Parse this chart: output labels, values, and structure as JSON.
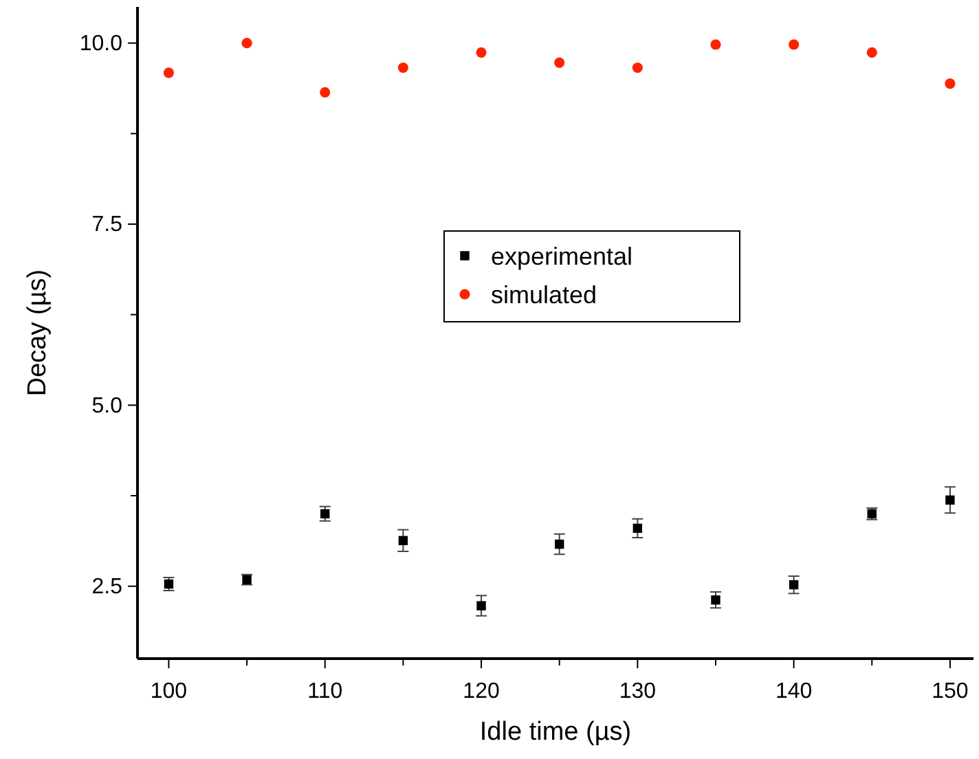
{
  "chart_data": {
    "type": "scatter",
    "xlabel": "Idle time (µs)",
    "ylabel": "Decay (µs)",
    "x": [
      100,
      105,
      110,
      115,
      120,
      125,
      130,
      135,
      140,
      145,
      150
    ],
    "series": [
      {
        "name": "experimental",
        "color": "#000000",
        "marker": "square",
        "values": [
          2.53,
          2.59,
          3.5,
          3.13,
          2.23,
          3.08,
          3.3,
          2.31,
          2.52,
          3.5,
          3.69
        ],
        "errors": [
          0.09,
          0.07,
          0.1,
          0.15,
          0.14,
          0.14,
          0.13,
          0.11,
          0.12,
          0.08,
          0.18
        ]
      },
      {
        "name": "simulated",
        "color": "#ff2200",
        "marker": "circle",
        "values": [
          9.59,
          10.0,
          9.32,
          9.66,
          9.87,
          9.73,
          9.66,
          9.98,
          9.98,
          9.87,
          9.44
        ]
      }
    ],
    "xlim": [
      98,
      151.5
    ],
    "ylim": [
      1.5,
      10.5
    ],
    "xticks": [
      100,
      {
        "value": 105,
        "label": null
      },
      110,
      {
        "value": 115,
        "label": null
      },
      120,
      {
        "value": 125,
        "label": null
      },
      130,
      {
        "value": 135,
        "label": null
      },
      140,
      {
        "value": 145,
        "label": null
      },
      150
    ],
    "yticks": [
      2.5,
      {
        "value": 3.75,
        "label": null
      },
      {
        "value": 5,
        "label": "5.0"
      },
      {
        "value": 6.25,
        "label": null
      },
      7.5,
      {
        "value": 8.75,
        "label": null
      },
      {
        "value": 10,
        "label": "10.0"
      }
    ],
    "grid": false,
    "legend": "center"
  }
}
